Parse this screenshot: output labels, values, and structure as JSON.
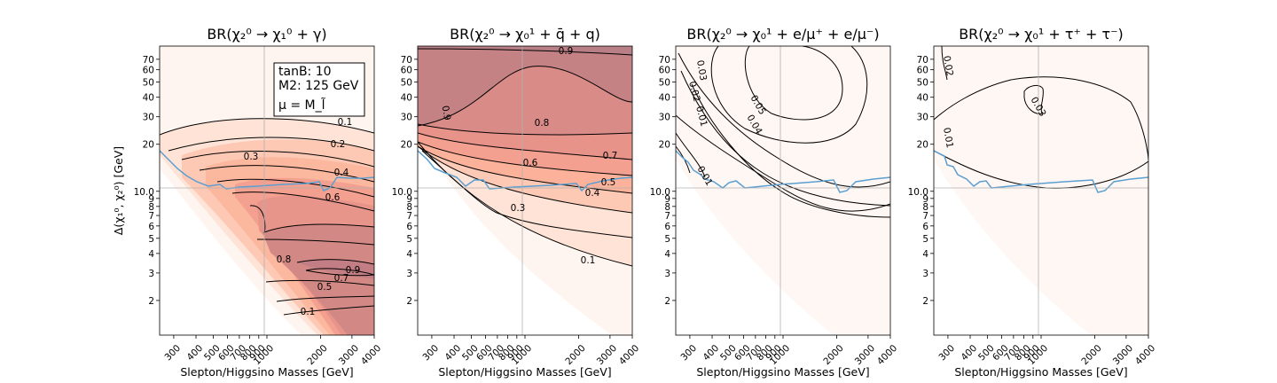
{
  "chart_data": [
    {
      "type": "contour",
      "title": "BR(χ₂⁰ → χ₁⁰ + γ)",
      "xlabel": "Slepton/Higgsino Masses [GeV]",
      "ylabel": "Δ(χ₁⁰, χ₂⁰) [GeV]",
      "x_scale": "log",
      "xlim": [
        250,
        4000
      ],
      "y_scale": "log",
      "ylim": [
        1.2,
        85
      ],
      "x_ticks": [
        "300",
        "400",
        "500",
        "600",
        "700",
        "800",
        "900",
        "1000",
        "2000",
        "3000",
        "4000"
      ],
      "y_ticks": [
        "2",
        "3",
        "4",
        "5",
        "6",
        "7",
        "8",
        "9",
        "10.0",
        "20",
        "30",
        "40",
        "50",
        "60",
        "70"
      ],
      "contour_levels": [
        0.1,
        0.2,
        0.3,
        0.4,
        0.5,
        0.6,
        0.7,
        0.8,
        0.9
      ],
      "contour_labels": [
        "0.1",
        "0.2",
        "0.3",
        "0.4",
        "0.6",
        "0.8",
        "0.9",
        "0.7",
        "0.5",
        "0.1"
      ],
      "reference_lines": {
        "x": 1000,
        "y": 10
      },
      "annotation": [
        "tanB: 10",
        "M2: 125 GeV",
        "μ = M_l̃"
      ]
    },
    {
      "type": "contour",
      "title": "BR(χ₂⁰ → χ₀¹ + q̄ + q)",
      "xlabel": "Slepton/Higgsino Masses [GeV]",
      "x_scale": "log",
      "xlim": [
        250,
        4000
      ],
      "y_scale": "log",
      "ylim": [
        1.2,
        85
      ],
      "x_ticks": [
        "300",
        "400",
        "500",
        "600",
        "700",
        "800",
        "900",
        "1000",
        "2000",
        "3000",
        "4000"
      ],
      "y_ticks": [
        "2",
        "3",
        "4",
        "5",
        "6",
        "7",
        "8",
        "9",
        "10.0",
        "20",
        "30",
        "40",
        "50",
        "60",
        "70"
      ],
      "contour_levels": [
        0.1,
        0.2,
        0.3,
        0.4,
        0.5,
        0.6,
        0.7,
        0.8,
        0.9
      ],
      "contour_labels": [
        "0.9",
        "0.9",
        "0.8",
        "0.7",
        "0.6",
        "0.5",
        "0.4",
        "0.3",
        "0.1"
      ],
      "reference_lines": {
        "x": 1000,
        "y": 10
      }
    },
    {
      "type": "contour",
      "title": "BR(χ₂⁰ → χ₀¹ + e/μ⁺ + e/μ⁻)",
      "xlabel": "Slepton/Higgsino Masses [GeV]",
      "x_scale": "log",
      "xlim": [
        250,
        4000
      ],
      "y_scale": "log",
      "ylim": [
        1.2,
        85
      ],
      "x_ticks": [
        "300",
        "400",
        "500",
        "600",
        "700",
        "800",
        "900",
        "1000",
        "2000",
        "3000",
        "4000"
      ],
      "y_ticks": [
        "2",
        "3",
        "4",
        "5",
        "6",
        "7",
        "8",
        "9",
        "10.0",
        "20",
        "30",
        "40",
        "50",
        "60",
        "70"
      ],
      "contour_levels": [
        0.01,
        0.02,
        0.03,
        0.04,
        0.05
      ],
      "contour_labels": [
        "0.03",
        "0.02",
        "0.01",
        "0.05",
        "0.04",
        "0.01"
      ],
      "reference_lines": {
        "x": 1000,
        "y": 10
      }
    },
    {
      "type": "contour",
      "title": "BR(χ₂⁰ → χ₀¹ + τ⁺ + τ⁻)",
      "xlabel": "Slepton/Higgsino Masses [GeV]",
      "x_scale": "log",
      "xlim": [
        250,
        4000
      ],
      "y_scale": "log",
      "ylim": [
        1.2,
        85
      ],
      "x_ticks": [
        "300",
        "400",
        "500",
        "600",
        "700",
        "800",
        "900",
        "1000",
        "2000",
        "3000",
        "4000"
      ],
      "y_ticks": [
        "2",
        "3",
        "4",
        "5",
        "6",
        "7",
        "8",
        "9",
        "10.0",
        "20",
        "30",
        "40",
        "50",
        "60",
        "70"
      ],
      "contour_levels": [
        0.01,
        0.02,
        0.03
      ],
      "contour_labels": [
        "0.02",
        "0.01",
        "0.03"
      ],
      "reference_lines": {
        "x": 1000,
        "y": 10
      }
    }
  ],
  "colors": {
    "fill_scale": [
      "#fff5f0",
      "#fee3d6",
      "#fdc9b4",
      "#fca98b",
      "#f4a090",
      "#e08a86",
      "#c78486",
      "#b88086"
    ],
    "contour": "#000000",
    "boundary_line": "#5b9fd1",
    "guide_line": "#b0b0b0"
  }
}
